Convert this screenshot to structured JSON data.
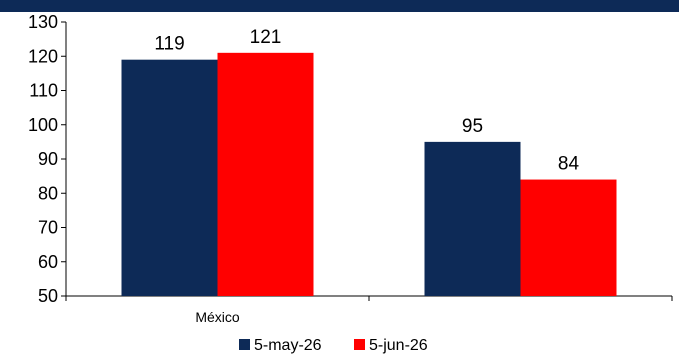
{
  "chart_data": {
    "type": "bar",
    "title": "",
    "categories": [
      "México",
      ""
    ],
    "series": [
      {
        "name": "5-may-26",
        "values": [
          119,
          95
        ],
        "color": "#0d2a57"
      },
      {
        "name": "5-jun-26",
        "values": [
          121,
          84
        ],
        "color": "#ff0000"
      }
    ],
    "ylim": [
      50,
      130
    ],
    "yticks": [
      50,
      60,
      70,
      80,
      90,
      100,
      110,
      120,
      130
    ],
    "xlabel": "",
    "ylabel": "",
    "grid": false,
    "legend_position": "bottom",
    "title_bar_color": "#0d2a57"
  }
}
